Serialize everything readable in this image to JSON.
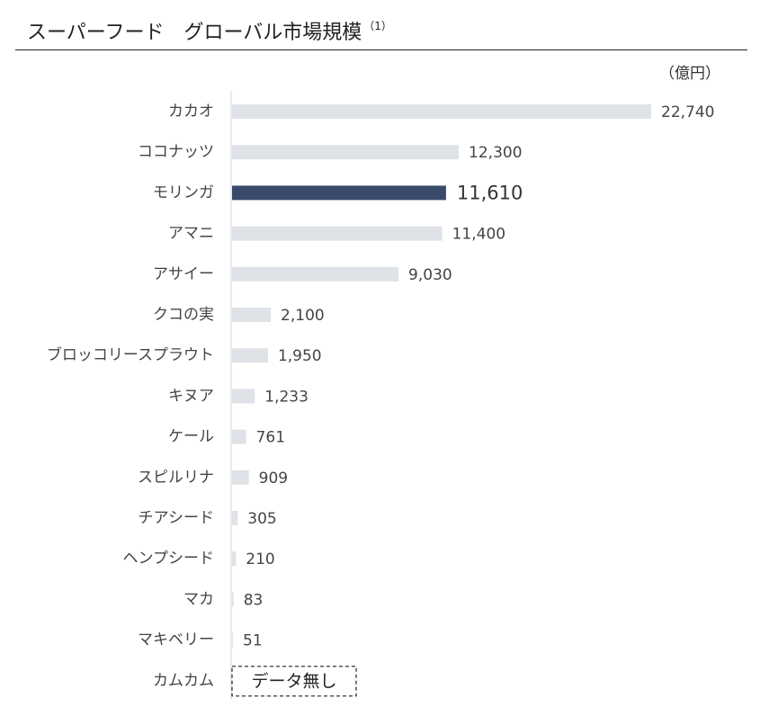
{
  "chart_data": {
    "type": "bar",
    "orientation": "horizontal",
    "title": "スーパーフード　グローバル市場規模",
    "title_note": "（1）",
    "unit": "（億円）",
    "categories": [
      "カカオ",
      "ココナッツ",
      "モリンガ",
      "アマニ",
      "アサイー",
      "クコの実",
      "ブロッコリースプラウト",
      "キヌア",
      "ケール",
      "スピルリナ",
      "チアシード",
      "ヘンプシード",
      "マカ",
      "マキベリー",
      "カムカム"
    ],
    "values": [
      22740,
      12300,
      11610,
      11400,
      9030,
      2100,
      1950,
      1233,
      761,
      909,
      305,
      210,
      83,
      51,
      null
    ],
    "value_labels": [
      "22,740",
      "12,300",
      "11,610",
      "11,400",
      "9,030",
      "2,100",
      "1,950",
      "1,233",
      "761",
      "909",
      "305",
      "210",
      "83",
      "51",
      ""
    ],
    "highlight": "モリンガ",
    "no_data_label": "データ無し",
    "colors": {
      "bar": "#dfe2e7",
      "highlight": "#3a4a6b",
      "axis": "#d0d4da"
    },
    "grid": false
  }
}
